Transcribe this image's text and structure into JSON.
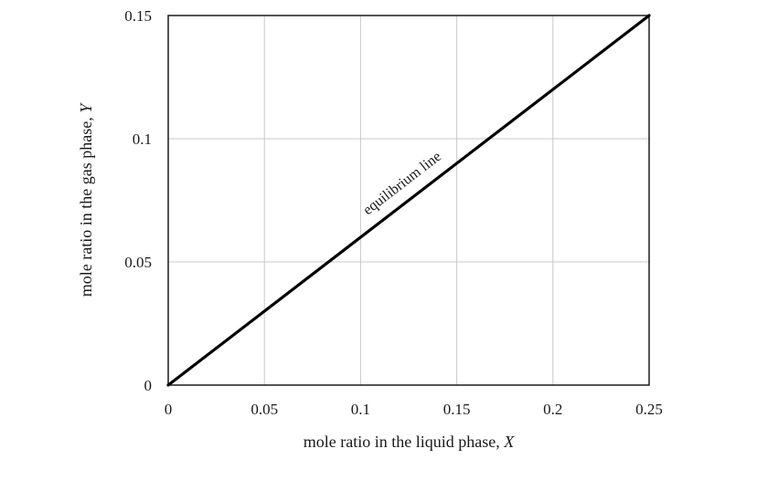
{
  "chart_data": {
    "type": "line",
    "title": "",
    "xlabel": "mole ratio in the liquid phase, ",
    "xlabel_var": "X",
    "ylabel": "mole ratio in the gas phase, ",
    "ylabel_var": "Y",
    "xlim": [
      0,
      0.25
    ],
    "ylim": [
      0,
      0.15
    ],
    "xticks": [
      0,
      0.05,
      0.1,
      0.15,
      0.2,
      0.25
    ],
    "xtick_labels": [
      "0",
      "0.05",
      "0.1",
      "0.15",
      "0.2",
      "0.25"
    ],
    "yticks": [
      0,
      0.05,
      0.1,
      0.15
    ],
    "ytick_labels": [
      "0",
      "0.05",
      "0.1",
      "0.15"
    ],
    "grid": true,
    "series": [
      {
        "x": [
          0,
          0.25
        ],
        "y": [
          0,
          0.15
        ],
        "color": "#000000"
      }
    ],
    "annotations": [
      {
        "text": "equilibrium  line",
        "x": 0.123,
        "y": 0.0805
      }
    ]
  }
}
